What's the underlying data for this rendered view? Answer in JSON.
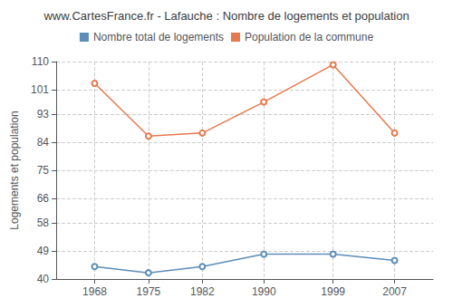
{
  "chart_data": {
    "type": "line",
    "title": "www.CartesFrance.fr - Lafauche : Nombre de logements et population",
    "ylabel": "Logements et population",
    "x": [
      1968,
      1975,
      1982,
      1990,
      1999,
      2007
    ],
    "series": [
      {
        "name": "Nombre total de logements",
        "color": "#5b8db8",
        "values": [
          44,
          42,
          44,
          48,
          48,
          46
        ]
      },
      {
        "name": "Population de la commune",
        "color": "#e8784d",
        "values": [
          103,
          86,
          87,
          97,
          109,
          87
        ]
      }
    ],
    "xlim": [
      1963,
      2012
    ],
    "xticks": [
      1968,
      1975,
      1982,
      1990,
      1999,
      2007
    ],
    "ylim": [
      40,
      110
    ],
    "yticks": [
      40,
      49,
      58,
      66,
      75,
      84,
      93,
      101,
      110
    ],
    "grid": true,
    "legend": "top",
    "marker": "circle"
  }
}
